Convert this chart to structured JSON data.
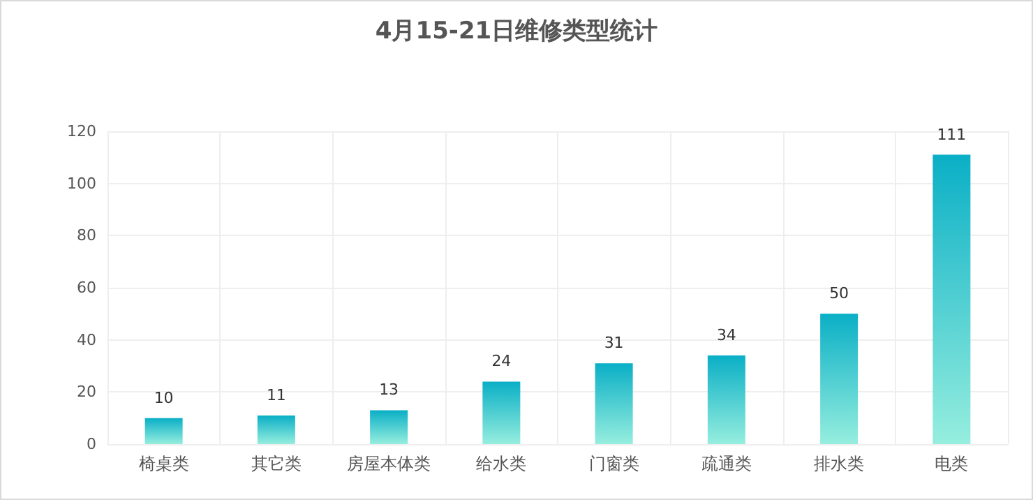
{
  "chart_data": {
    "type": "bar",
    "title": "4月15-21日维修类型统计",
    "categories": [
      "椅桌类",
      "其它类",
      "房屋本体类",
      "给水类",
      "门窗类",
      "疏通类",
      "排水类",
      "电类"
    ],
    "values": [
      10,
      11,
      13,
      24,
      31,
      34,
      50,
      111
    ],
    "color": "#0aafc6",
    "ylim": [
      0,
      120
    ],
    "yticks": [
      0,
      20,
      40,
      60,
      80,
      100,
      120
    ],
    "grid": true,
    "data_labels": true
  }
}
